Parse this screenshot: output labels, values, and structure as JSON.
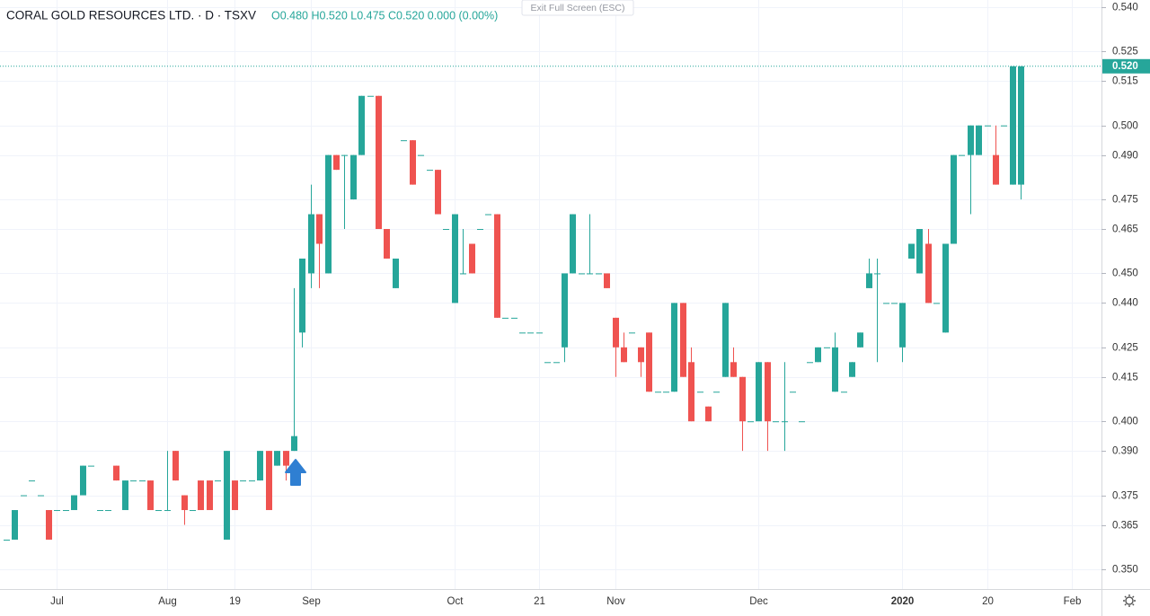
{
  "chart_data": {
    "type": "candlestick",
    "title": "CORAL GOLD RESOURCES LTD. · D · TSXV",
    "ohlc_legend": "O0.480 H0.520 L0.475 C0.520 0.000 (0.00%)",
    "exit_button": "Exit Full Screen (ESC)",
    "up_color": "#26a69a",
    "down_color": "#ef5350",
    "grid": true,
    "price_line": {
      "value": 0.52,
      "label": "0.520"
    },
    "ylim": [
      0.3433,
      0.5424
    ],
    "yticks": [
      {
        "value": 0.54,
        "label": "0.540"
      },
      {
        "value": 0.525,
        "label": "0.525"
      },
      {
        "value": 0.515,
        "label": "0.515"
      },
      {
        "value": 0.5,
        "label": "0.500"
      },
      {
        "value": 0.49,
        "label": "0.490"
      },
      {
        "value": 0.475,
        "label": "0.475"
      },
      {
        "value": 0.465,
        "label": "0.465"
      },
      {
        "value": 0.45,
        "label": "0.450"
      },
      {
        "value": 0.44,
        "label": "0.440"
      },
      {
        "value": 0.425,
        "label": "0.425"
      },
      {
        "value": 0.415,
        "label": "0.415"
      },
      {
        "value": 0.4,
        "label": "0.400"
      },
      {
        "value": 0.39,
        "label": "0.390"
      },
      {
        "value": 0.375,
        "label": "0.375"
      },
      {
        "value": 0.365,
        "label": "0.365"
      },
      {
        "value": 0.35,
        "label": "0.350"
      }
    ],
    "categories": [
      null,
      null,
      null,
      null,
      null,
      null,
      "Jul",
      null,
      null,
      null,
      null,
      null,
      null,
      null,
      null,
      null,
      null,
      null,
      null,
      "Aug",
      null,
      null,
      null,
      null,
      null,
      null,
      null,
      "19",
      null,
      null,
      null,
      null,
      null,
      null,
      null,
      null,
      "Sep",
      null,
      null,
      null,
      null,
      null,
      null,
      null,
      null,
      null,
      null,
      null,
      null,
      null,
      null,
      null,
      null,
      "Oct",
      null,
      null,
      null,
      null,
      null,
      null,
      null,
      null,
      null,
      "21",
      null,
      null,
      null,
      null,
      null,
      null,
      null,
      null,
      "Nov",
      null,
      null,
      null,
      null,
      null,
      null,
      null,
      null,
      null,
      null,
      null,
      null,
      null,
      null,
      null,
      null,
      "Dec",
      null,
      null,
      null,
      null,
      null,
      null,
      null,
      null,
      null,
      null,
      null,
      null,
      null,
      null,
      null,
      null,
      "2020",
      null,
      null,
      null,
      null,
      null,
      null,
      null,
      null,
      null,
      "20",
      null,
      null,
      null,
      null,
      null,
      null,
      null,
      null,
      null,
      "Feb",
      null,
      null,
      null
    ],
    "open": [
      0.36,
      0.36,
      0.375,
      0.38,
      0.375,
      0.37,
      0.37,
      0.37,
      0.37,
      0.375,
      0.385,
      0.37,
      0.37,
      0.385,
      0.37,
      0.38,
      0.38,
      0.38,
      0.37,
      0.37,
      0.39,
      0.375,
      0.37,
      0.38,
      0.38,
      0.38,
      0.36,
      0.38,
      0.38,
      0.38,
      0.38,
      0.39,
      0.385,
      0.39,
      0.39,
      0.43,
      0.45,
      0.47,
      0.45,
      0.49,
      0.49,
      0.475,
      0.49,
      0.51,
      0.51,
      0.465,
      0.445,
      0.495,
      0.495,
      0.49,
      0.485,
      0.485,
      0.465,
      0.44,
      0.45,
      0.46,
      0.465,
      0.47,
      0.47,
      0.435,
      0.435,
      0.43,
      0.43,
      0.43,
      0.42,
      0.42,
      0.425,
      0.45,
      0.45,
      0.45,
      0.45,
      0.45,
      0.435,
      0.425,
      0.43,
      0.425,
      0.43,
      0.41,
      0.41,
      0.41,
      0.44,
      0.42,
      0.41,
      0.405,
      0.41,
      0.415,
      0.42,
      0.415,
      0.4,
      0.4,
      0.42,
      0.4,
      0.4,
      0.41,
      0.4,
      0.42,
      0.42,
      0.425,
      0.41,
      0.41,
      0.415,
      0.425,
      0.445,
      0.45,
      0.44,
      0.44,
      0.425,
      0.455,
      0.45,
      0.46,
      0.44,
      0.43,
      0.46,
      0.49,
      0.49,
      0.49,
      0.5,
      0.49,
      0.5,
      0.48,
      0.48,
      null,
      null,
      null,
      null,
      null,
      null,
      null,
      null,
      null
    ],
    "high": [
      0.36,
      0.37,
      0.375,
      0.38,
      0.375,
      0.37,
      0.37,
      0.37,
      0.375,
      0.385,
      0.385,
      0.37,
      0.37,
      0.385,
      0.38,
      0.38,
      0.38,
      0.38,
      0.37,
      0.39,
      0.39,
      0.375,
      0.37,
      0.38,
      0.38,
      0.38,
      0.39,
      0.38,
      0.38,
      0.38,
      0.39,
      0.39,
      0.39,
      0.39,
      0.445,
      0.455,
      0.48,
      0.47,
      0.49,
      0.49,
      0.49,
      0.49,
      0.51,
      0.51,
      0.51,
      0.465,
      0.455,
      0.495,
      0.495,
      0.49,
      0.485,
      0.485,
      0.465,
      0.47,
      0.465,
      0.46,
      0.465,
      0.47,
      0.47,
      0.435,
      0.435,
      0.43,
      0.43,
      0.43,
      0.42,
      0.42,
      0.45,
      0.47,
      0.45,
      0.47,
      0.45,
      0.45,
      0.435,
      0.43,
      0.43,
      0.425,
      0.43,
      0.41,
      0.41,
      0.44,
      0.44,
      0.425,
      0.41,
      0.405,
      0.41,
      0.44,
      0.425,
      0.415,
      0.4,
      0.42,
      0.42,
      0.4,
      0.42,
      0.41,
      0.4,
      0.42,
      0.425,
      0.425,
      0.43,
      0.41,
      0.42,
      0.43,
      0.455,
      0.455,
      0.44,
      0.44,
      0.44,
      0.46,
      0.465,
      0.465,
      0.44,
      0.46,
      0.49,
      0.49,
      0.5,
      0.5,
      0.5,
      0.5,
      0.5,
      0.52,
      0.52,
      null,
      null,
      null,
      null,
      null,
      null,
      null,
      null,
      null
    ],
    "low": [
      0.36,
      0.36,
      0.375,
      0.38,
      0.375,
      0.36,
      0.37,
      0.37,
      0.37,
      0.375,
      0.385,
      0.37,
      0.37,
      0.38,
      0.37,
      0.38,
      0.38,
      0.37,
      0.37,
      0.37,
      0.38,
      0.365,
      0.37,
      0.37,
      0.37,
      0.38,
      0.36,
      0.37,
      0.38,
      0.38,
      0.38,
      0.37,
      0.385,
      0.38,
      0.39,
      0.425,
      0.445,
      0.445,
      0.45,
      0.485,
      0.465,
      0.475,
      0.49,
      0.51,
      0.465,
      0.455,
      0.445,
      0.495,
      0.48,
      0.49,
      0.485,
      0.47,
      0.465,
      0.44,
      0.45,
      0.45,
      0.465,
      0.47,
      0.435,
      0.435,
      0.435,
      0.43,
      0.43,
      0.43,
      0.42,
      0.42,
      0.42,
      0.45,
      0.45,
      0.45,
      0.45,
      0.445,
      0.415,
      0.42,
      0.43,
      0.415,
      0.41,
      0.41,
      0.41,
      0.41,
      0.415,
      0.4,
      0.41,
      0.4,
      0.41,
      0.415,
      0.415,
      0.39,
      0.4,
      0.4,
      0.39,
      0.4,
      0.39,
      0.41,
      0.4,
      0.42,
      0.42,
      0.425,
      0.41,
      0.41,
      0.415,
      0.425,
      0.445,
      0.42,
      0.44,
      0.44,
      0.42,
      0.455,
      0.45,
      0.44,
      0.44,
      0.43,
      0.46,
      0.49,
      0.47,
      0.49,
      0.5,
      0.48,
      0.5,
      0.48,
      0.475,
      null,
      null,
      null,
      null,
      null,
      null,
      null,
      null,
      null
    ],
    "close": [
      0.36,
      0.37,
      0.375,
      0.38,
      0.375,
      0.36,
      0.37,
      0.37,
      0.375,
      0.385,
      0.385,
      0.37,
      0.37,
      0.38,
      0.38,
      0.38,
      0.38,
      0.37,
      0.37,
      0.37,
      0.38,
      0.37,
      0.37,
      0.37,
      0.37,
      0.38,
      0.39,
      0.37,
      0.38,
      0.38,
      0.39,
      0.37,
      0.39,
      0.385,
      0.395,
      0.455,
      0.47,
      0.46,
      0.49,
      0.485,
      0.49,
      0.49,
      0.51,
      0.51,
      0.465,
      0.455,
      0.455,
      0.495,
      0.48,
      0.49,
      0.485,
      0.47,
      0.465,
      0.47,
      0.45,
      0.45,
      0.465,
      0.47,
      0.435,
      0.435,
      0.435,
      0.43,
      0.43,
      0.43,
      0.42,
      0.42,
      0.45,
      0.47,
      0.45,
      0.45,
      0.45,
      0.445,
      0.425,
      0.42,
      0.43,
      0.42,
      0.41,
      0.41,
      0.41,
      0.44,
      0.415,
      0.4,
      0.41,
      0.4,
      0.41,
      0.44,
      0.415,
      0.4,
      0.4,
      0.42,
      0.4,
      0.4,
      0.4,
      0.41,
      0.4,
      0.42,
      0.425,
      0.425,
      0.425,
      0.41,
      0.42,
      0.43,
      0.45,
      0.45,
      0.44,
      0.44,
      0.44,
      0.46,
      0.465,
      0.44,
      0.44,
      0.46,
      0.49,
      0.49,
      0.5,
      0.5,
      0.5,
      0.48,
      0.5,
      0.52,
      0.52,
      null,
      null,
      null,
      null,
      null,
      null,
      null,
      null,
      null
    ]
  }
}
